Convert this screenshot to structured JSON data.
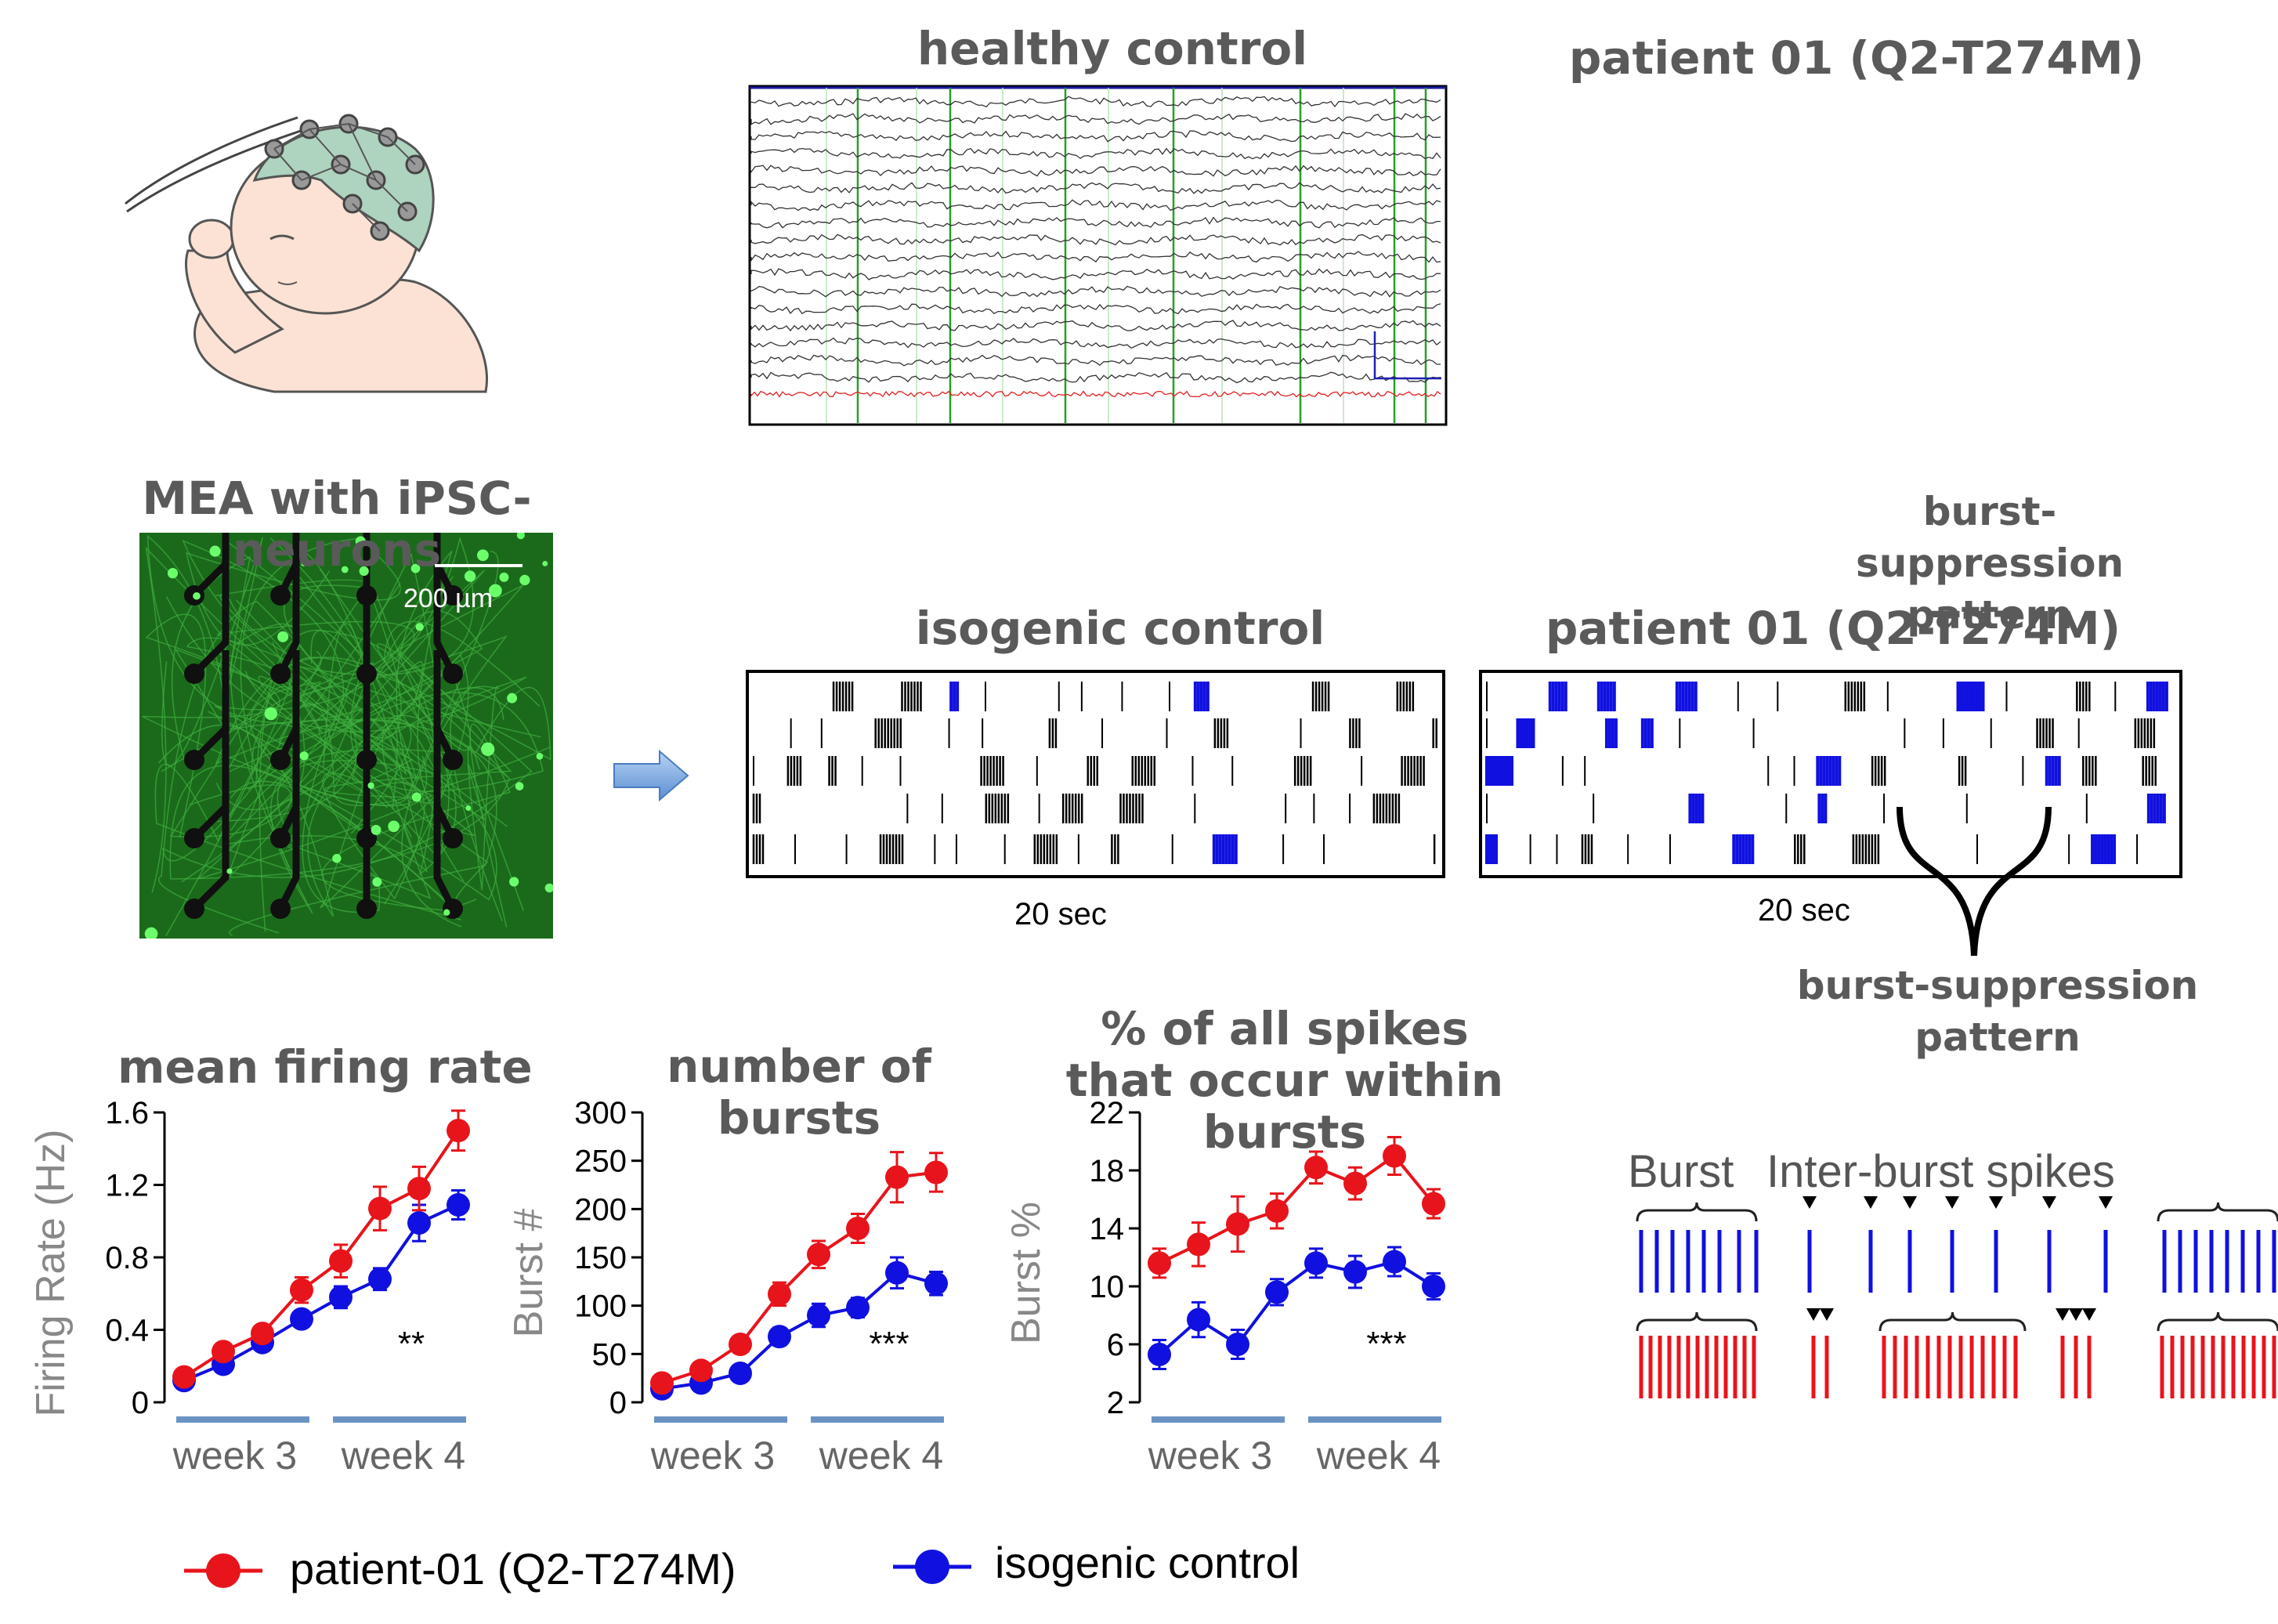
{
  "titles": {
    "healthy_control": "healthy control",
    "patient_eeg": "patient 01 (Q2-T274M)",
    "mea": "MEA with iPSC-neurons",
    "isogenic_raster": "isogenic control",
    "patient_raster": "patient 01 (Q2-T274M)",
    "burst_suppression_top": "burst-suppression pattern",
    "burst_suppression_bottom": "burst-suppression pattern"
  },
  "scale_bar": "200 µm",
  "time_labels": {
    "isogenic": "20 sec",
    "patient": "20 sec"
  },
  "schematic": {
    "burst": "Burst",
    "inter_burst": "Inter-burst spikes"
  },
  "legend": {
    "patient": "patient-01 (Q2-T274M)",
    "control": "isogenic control",
    "patient_color": "#e8141b",
    "control_color": "#1010e0"
  },
  "colors": {
    "bar": "#6a93c4",
    "header": "#5a5a5a",
    "mea_bg": "#1b6a1b"
  },
  "week_labels": [
    "week 3",
    "week 4"
  ],
  "chart_data": [
    {
      "type": "line",
      "title": "mean firing rate",
      "ylabel": "Firing Rate (Hz)",
      "ylim": [
        0,
        1.6
      ],
      "yticks": [
        "0",
        "0.4",
        "0.8",
        "1.2",
        "1.6"
      ],
      "yticks_values": [
        0,
        0.4,
        0.8,
        1.2,
        1.6
      ],
      "significance": "**",
      "series": [
        {
          "name": "patient-01 (Q2-T274M)",
          "color": "#e8141b",
          "values": [
            0.14,
            0.28,
            0.38,
            0.62,
            0.78,
            1.07,
            1.18,
            1.5
          ],
          "errors": [
            0.03,
            0.04,
            0.04,
            0.07,
            0.09,
            0.12,
            0.12,
            0.11
          ]
        },
        {
          "name": "isogenic control",
          "color": "#1010e0",
          "values": [
            0.12,
            0.21,
            0.33,
            0.46,
            0.58,
            0.68,
            0.99,
            1.09
          ],
          "errors": [
            0.03,
            0.03,
            0.04,
            0.04,
            0.06,
            0.06,
            0.1,
            0.08
          ]
        }
      ]
    },
    {
      "type": "line",
      "title": "number of bursts",
      "ylabel": "Burst #",
      "ylim": [
        0,
        300
      ],
      "yticks": [
        "0",
        "50",
        "100",
        "150",
        "200",
        "250",
        "300"
      ],
      "yticks_values": [
        0,
        50,
        100,
        150,
        200,
        250,
        300
      ],
      "significance": "***",
      "series": [
        {
          "name": "patient-01 (Q2-T274M)",
          "color": "#e8141b",
          "values": [
            20,
            33,
            60,
            112,
            153,
            180,
            233,
            238
          ],
          "errors": [
            5,
            6,
            7,
            12,
            14,
            15,
            26,
            20
          ]
        },
        {
          "name": "isogenic control",
          "color": "#1010e0",
          "values": [
            14,
            20,
            30,
            68,
            90,
            98,
            134,
            123
          ],
          "errors": [
            4,
            4,
            5,
            9,
            12,
            10,
            16,
            12
          ]
        }
      ]
    },
    {
      "type": "line",
      "title": "% of all spikes that occur within bursts",
      "ylabel": "Burst %",
      "ylim": [
        2,
        22
      ],
      "yticks": [
        "2",
        "6",
        "10",
        "14",
        "18",
        "22"
      ],
      "yticks_values": [
        2,
        6,
        10,
        14,
        18,
        22
      ],
      "significance": "***",
      "series": [
        {
          "name": "patient-01 (Q2-T274M)",
          "color": "#e8141b",
          "values": [
            11.6,
            12.9,
            14.3,
            15.2,
            18.2,
            17.1,
            19.0,
            15.7
          ],
          "errors": [
            1.0,
            1.5,
            1.9,
            1.2,
            1.1,
            1.1,
            1.3,
            1.0
          ]
        },
        {
          "name": "isogenic control",
          "color": "#1010e0",
          "values": [
            5.3,
            7.7,
            6.0,
            9.6,
            11.6,
            11.0,
            11.7,
            10.0
          ],
          "errors": [
            1.0,
            1.2,
            1.0,
            0.9,
            1.0,
            1.1,
            1.0,
            0.9
          ]
        }
      ]
    }
  ]
}
